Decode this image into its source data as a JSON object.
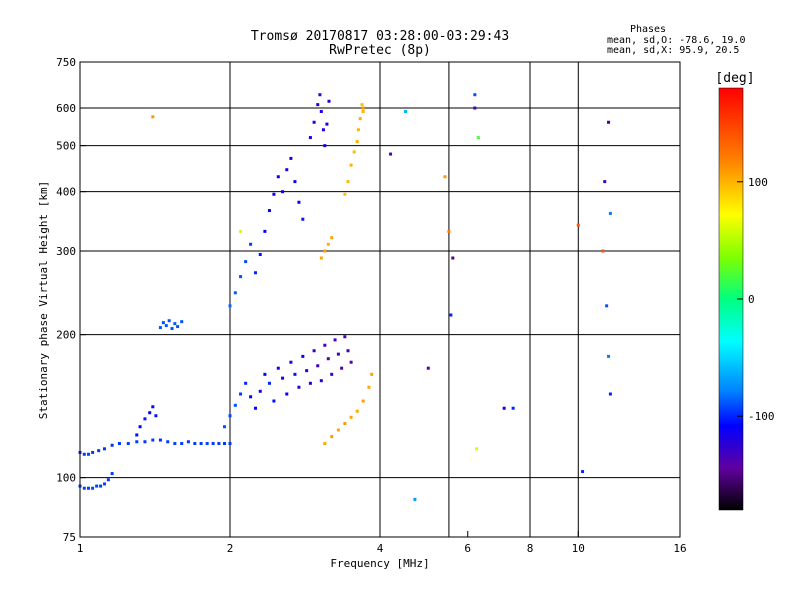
{
  "title_line1": "Tromsø 20170817 03:28:00-03:29:43",
  "title_line2": "RwPretec (8p)",
  "phase_box": {
    "heading": "Phases",
    "line1": "mean, sd,O: -78.6, 19.0",
    "line2": "mean, sd,X:  95.9, 20.5"
  },
  "colors": {
    "grid": "#000000",
    "background": "#ffffff"
  },
  "chart_data": {
    "type": "scatter",
    "title": "Tromsø 20170817 03:28:00-03:29:43",
    "subtitle": "RwPretec (8p)",
    "xlabel": "Frequency [MHz]",
    "ylabel": "Stationary phase Virtual Height [km]",
    "xscale": "log2",
    "yscale": "log",
    "xlim": [
      1,
      16
    ],
    "ylim": [
      75,
      750
    ],
    "xticks": [
      1,
      2,
      4,
      6,
      8,
      10,
      16
    ],
    "xtick_labels": [
      "1",
      "2",
      "4",
      "6",
      "8",
      "10",
      "16"
    ],
    "xgrid": [
      2,
      4,
      5.5,
      8,
      10
    ],
    "yticks": [
      75,
      100,
      200,
      300,
      400,
      500,
      600,
      750
    ],
    "ytick_labels": [
      "75",
      "100",
      "200",
      "300",
      "400",
      "500",
      "600",
      "750"
    ],
    "ygrid": [
      100,
      200,
      300,
      400,
      500,
      600
    ],
    "grid": true,
    "colorbar": {
      "label": "[deg]",
      "range": [
        -180,
        180
      ],
      "ticks": [
        100,
        0,
        -100
      ],
      "tick_labels": [
        "100",
        "0",
        "-100"
      ]
    },
    "series": [
      {
        "trace": "low-E trace",
        "points": [
          [
            1.0,
            113,
            -95
          ],
          [
            1.02,
            112,
            -95
          ],
          [
            1.04,
            112,
            -93
          ],
          [
            1.06,
            113,
            -95
          ],
          [
            1.09,
            114,
            -95
          ],
          [
            1.12,
            115,
            -96
          ],
          [
            1.16,
            117,
            -97
          ],
          [
            1.2,
            118,
            -96
          ],
          [
            1.25,
            118,
            -94
          ],
          [
            1.3,
            119,
            -95
          ],
          [
            1.35,
            119,
            -96
          ],
          [
            1.4,
            120,
            -95
          ],
          [
            1.45,
            120,
            -97
          ],
          [
            1.5,
            119,
            -95
          ],
          [
            1.55,
            118,
            -93
          ],
          [
            1.6,
            118,
            -95
          ],
          [
            1.65,
            119,
            -96
          ],
          [
            1.7,
            118,
            -95
          ],
          [
            1.75,
            118,
            -94
          ],
          [
            1.8,
            118,
            -93
          ],
          [
            1.85,
            118,
            -95
          ],
          [
            1.9,
            118,
            -94
          ],
          [
            1.95,
            118,
            -96
          ],
          [
            2.0,
            118,
            -95
          ]
        ]
      },
      {
        "trace": "bottom trace",
        "points": [
          [
            1.0,
            96,
            -92
          ],
          [
            1.02,
            95,
            -93
          ],
          [
            1.04,
            95,
            -94
          ],
          [
            1.06,
            95,
            -92
          ],
          [
            1.08,
            96,
            -93
          ],
          [
            1.1,
            96,
            -94
          ],
          [
            1.12,
            97,
            -93
          ],
          [
            1.14,
            99,
            -95
          ],
          [
            1.16,
            102,
            -95
          ]
        ]
      },
      {
        "trace": "cusp near 1.5 MHz",
        "points": [
          [
            1.45,
            207,
            -88
          ],
          [
            1.47,
            212,
            -90
          ],
          [
            1.49,
            209,
            -88
          ],
          [
            1.51,
            214,
            -89
          ],
          [
            1.53,
            206,
            -90
          ],
          [
            1.55,
            211,
            -88
          ],
          [
            1.57,
            208,
            -89
          ],
          [
            1.6,
            213,
            -90
          ]
        ]
      },
      {
        "trace": "spread near 1.35 MHz",
        "points": [
          [
            1.3,
            123,
            -105
          ],
          [
            1.32,
            128,
            -108
          ],
          [
            1.35,
            133,
            -103
          ],
          [
            1.38,
            137,
            -110
          ],
          [
            1.4,
            141,
            -106
          ],
          [
            1.42,
            135,
            -104
          ]
        ]
      },
      {
        "trace": "F region O lower",
        "points": [
          [
            1.95,
            128,
            -90
          ],
          [
            2.0,
            135,
            -92
          ],
          [
            2.05,
            142,
            -90
          ],
          [
            2.1,
            150,
            -95
          ],
          [
            2.15,
            158,
            -100
          ],
          [
            2.2,
            148,
            -110
          ],
          [
            2.25,
            140,
            -108
          ],
          [
            2.3,
            152,
            -115
          ],
          [
            2.35,
            165,
            -110
          ],
          [
            2.4,
            158,
            -100
          ],
          [
            2.45,
            145,
            -105
          ],
          [
            2.5,
            170,
            -112
          ],
          [
            2.55,
            162,
            -120
          ],
          [
            2.6,
            150,
            -108
          ],
          [
            2.65,
            175,
            -118
          ],
          [
            2.7,
            165,
            -104
          ],
          [
            2.75,
            155,
            -120
          ],
          [
            2.8,
            180,
            -112
          ],
          [
            2.85,
            168,
            -124
          ],
          [
            2.9,
            158,
            -118
          ],
          [
            2.95,
            185,
            -126
          ],
          [
            3.0,
            172,
            -130
          ],
          [
            3.05,
            160,
            -120
          ],
          [
            3.1,
            190,
            -132
          ],
          [
            3.15,
            178,
            -140
          ],
          [
            3.2,
            165,
            -130
          ],
          [
            3.25,
            195,
            -136
          ],
          [
            3.3,
            182,
            -128
          ],
          [
            3.35,
            170,
            -140
          ],
          [
            3.4,
            198,
            -138
          ],
          [
            3.45,
            185,
            -130
          ],
          [
            3.5,
            175,
            -145
          ]
        ]
      },
      {
        "trace": "F region O upper",
        "points": [
          [
            2.0,
            230,
            -85
          ],
          [
            2.05,
            245,
            -87
          ],
          [
            2.1,
            265,
            -90
          ],
          [
            2.15,
            285,
            -92
          ],
          [
            2.2,
            310,
            -95
          ],
          [
            2.25,
            270,
            -100
          ],
          [
            2.3,
            295,
            -104
          ],
          [
            2.35,
            330,
            -108
          ],
          [
            2.4,
            365,
            -110
          ],
          [
            2.45,
            395,
            -112
          ],
          [
            2.5,
            430,
            -114
          ],
          [
            2.55,
            400,
            -110
          ],
          [
            2.6,
            445,
            -118
          ],
          [
            2.65,
            470,
            -116
          ],
          [
            2.7,
            420,
            -112
          ],
          [
            2.75,
            380,
            -108
          ],
          [
            2.8,
            350,
            -104
          ]
        ]
      },
      {
        "trace": "F cusp near 3 MHz",
        "points": [
          [
            2.9,
            520,
            -118
          ],
          [
            2.95,
            560,
            -120
          ],
          [
            3.0,
            610,
            -122
          ],
          [
            3.03,
            640,
            -124
          ],
          [
            3.05,
            590,
            -120
          ],
          [
            3.08,
            540,
            -118
          ],
          [
            3.1,
            500,
            -116
          ],
          [
            3.13,
            555,
            -119
          ],
          [
            3.16,
            620,
            -121
          ]
        ]
      },
      {
        "trace": "X trace upper",
        "points": [
          [
            3.4,
            395,
            95
          ],
          [
            3.45,
            420,
            97
          ],
          [
            3.5,
            455,
            100
          ],
          [
            3.55,
            485,
            98
          ],
          [
            3.6,
            510,
            102
          ],
          [
            3.62,
            540,
            99
          ],
          [
            3.65,
            570,
            101
          ],
          [
            3.68,
            610,
            96
          ],
          [
            3.7,
            590,
            100
          ]
        ]
      },
      {
        "trace": "X trace mid",
        "points": [
          [
            3.05,
            290,
            105
          ],
          [
            3.1,
            300,
            107
          ],
          [
            3.15,
            310,
            103
          ],
          [
            3.2,
            320,
            106
          ]
        ]
      },
      {
        "trace": "X trace lower",
        "points": [
          [
            3.1,
            118,
            105
          ],
          [
            3.2,
            122,
            108
          ],
          [
            3.3,
            126,
            104
          ],
          [
            3.4,
            130,
            110
          ],
          [
            3.5,
            134,
            106
          ],
          [
            3.6,
            138,
            103
          ],
          [
            3.7,
            145,
            108
          ],
          [
            3.8,
            155,
            104
          ],
          [
            3.85,
            165,
            107
          ]
        ]
      },
      {
        "trace": "scattered echoes",
        "points": [
          [
            1.4,
            575,
            110
          ],
          [
            2.1,
            330,
            60
          ],
          [
            3.7,
            600,
            110
          ],
          [
            4.2,
            480,
            -140
          ],
          [
            4.5,
            590,
            -60
          ],
          [
            4.7,
            90,
            -70
          ],
          [
            5.0,
            170,
            -135
          ],
          [
            5.4,
            430,
            110
          ],
          [
            5.5,
            330,
            120
          ],
          [
            5.55,
            220,
            -100
          ],
          [
            5.6,
            290,
            -150
          ],
          [
            6.2,
            600,
            -135
          ],
          [
            6.2,
            640,
            -90
          ],
          [
            6.3,
            520,
            20
          ],
          [
            6.25,
            115,
            60
          ],
          [
            7.1,
            140,
            -115
          ],
          [
            7.4,
            140,
            -100
          ],
          [
            10.0,
            340,
            140
          ],
          [
            10.2,
            103,
            -100
          ],
          [
            11.2,
            300,
            140
          ],
          [
            11.3,
            420,
            -130
          ],
          [
            11.5,
            560,
            -150
          ],
          [
            11.6,
            360,
            -80
          ],
          [
            11.4,
            230,
            -90
          ],
          [
            11.5,
            180,
            -80
          ],
          [
            11.6,
            150,
            -100
          ]
        ]
      }
    ]
  }
}
